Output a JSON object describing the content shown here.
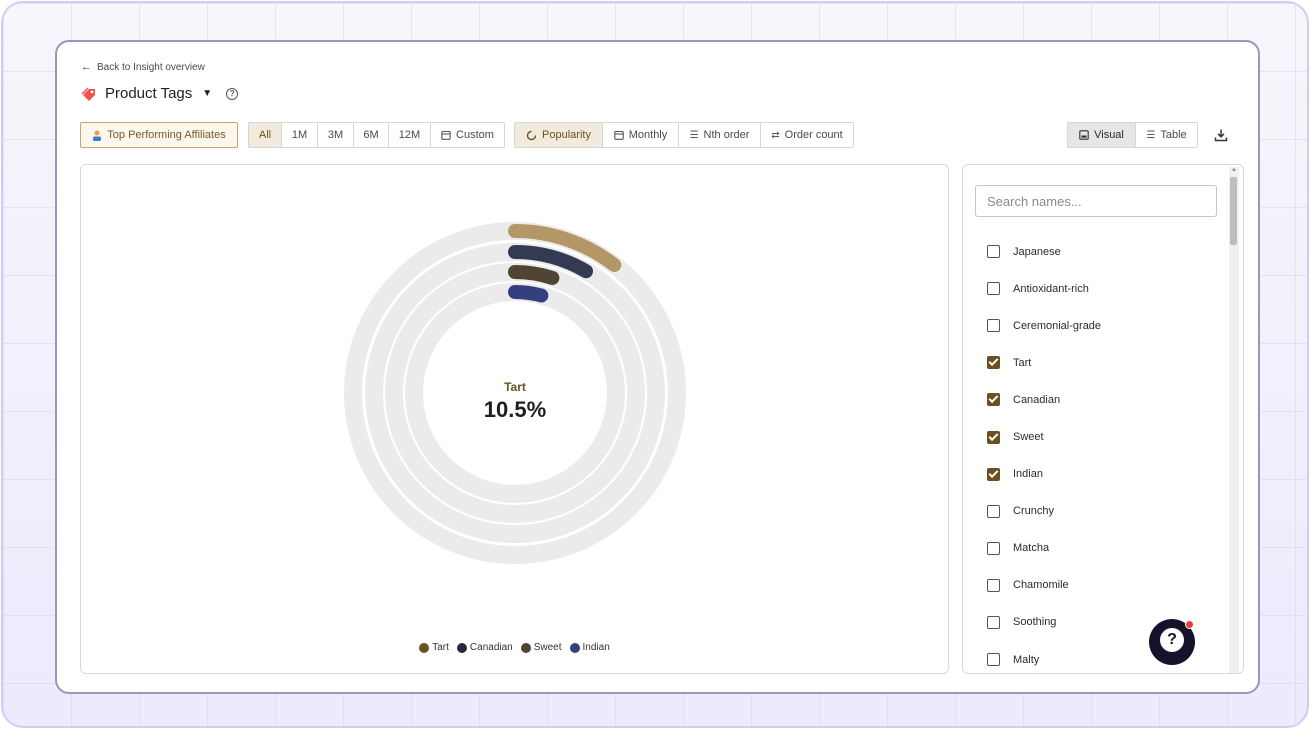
{
  "header": {
    "back_link": "Back to Insight overview",
    "title": "Product Tags"
  },
  "toolbar": {
    "affiliates_label": "Top Performing Affiliates",
    "ranges": [
      "All",
      "1M",
      "3M",
      "6M",
      "12M",
      "Custom"
    ],
    "active_range": "All",
    "metrics": [
      "Popularity",
      "Monthly",
      "Nth order",
      "Order count"
    ],
    "active_metric": "Popularity",
    "views": [
      "Visual",
      "Table"
    ],
    "active_view": "Visual"
  },
  "chart_data": {
    "type": "radial-bar",
    "center": {
      "label": "Tart",
      "value": "10.5%"
    },
    "series": [
      {
        "name": "Tart",
        "value": 10.5,
        "color": "#b39766"
      },
      {
        "name": "Canadian",
        "value": 8.4,
        "color": "#333a52"
      },
      {
        "name": "Sweet",
        "value": 5.0,
        "color": "#4e4431"
      },
      {
        "name": "Indian",
        "value": 4.2,
        "color": "#333f7e"
      }
    ],
    "legend": [
      {
        "name": "Tart",
        "color": "#6b5020"
      },
      {
        "name": "Canadian",
        "color": "#272a3e"
      },
      {
        "name": "Sweet",
        "color": "#4e4431"
      },
      {
        "name": "Indian",
        "color": "#333f7e"
      }
    ],
    "track_color": "#ebebeb",
    "max": 100
  },
  "names_panel": {
    "search_placeholder": "Search names...",
    "items": [
      {
        "label": "Japanese",
        "checked": false
      },
      {
        "label": "Antioxidant-rich",
        "checked": false
      },
      {
        "label": "Ceremonial-grade",
        "checked": false
      },
      {
        "label": "Tart",
        "checked": true
      },
      {
        "label": "Canadian",
        "checked": true
      },
      {
        "label": "Sweet",
        "checked": true
      },
      {
        "label": "Indian",
        "checked": true
      },
      {
        "label": "Crunchy",
        "checked": false
      },
      {
        "label": "Matcha",
        "checked": false
      },
      {
        "label": "Chamomile",
        "checked": false
      },
      {
        "label": "Soothing",
        "checked": false
      },
      {
        "label": "Malty",
        "checked": false
      }
    ]
  },
  "icons": {
    "back": "arrow-left-icon",
    "tag": "tag-icon",
    "help": "question-circle-icon",
    "download": "download-icon",
    "fab": "help-chat-icon"
  }
}
